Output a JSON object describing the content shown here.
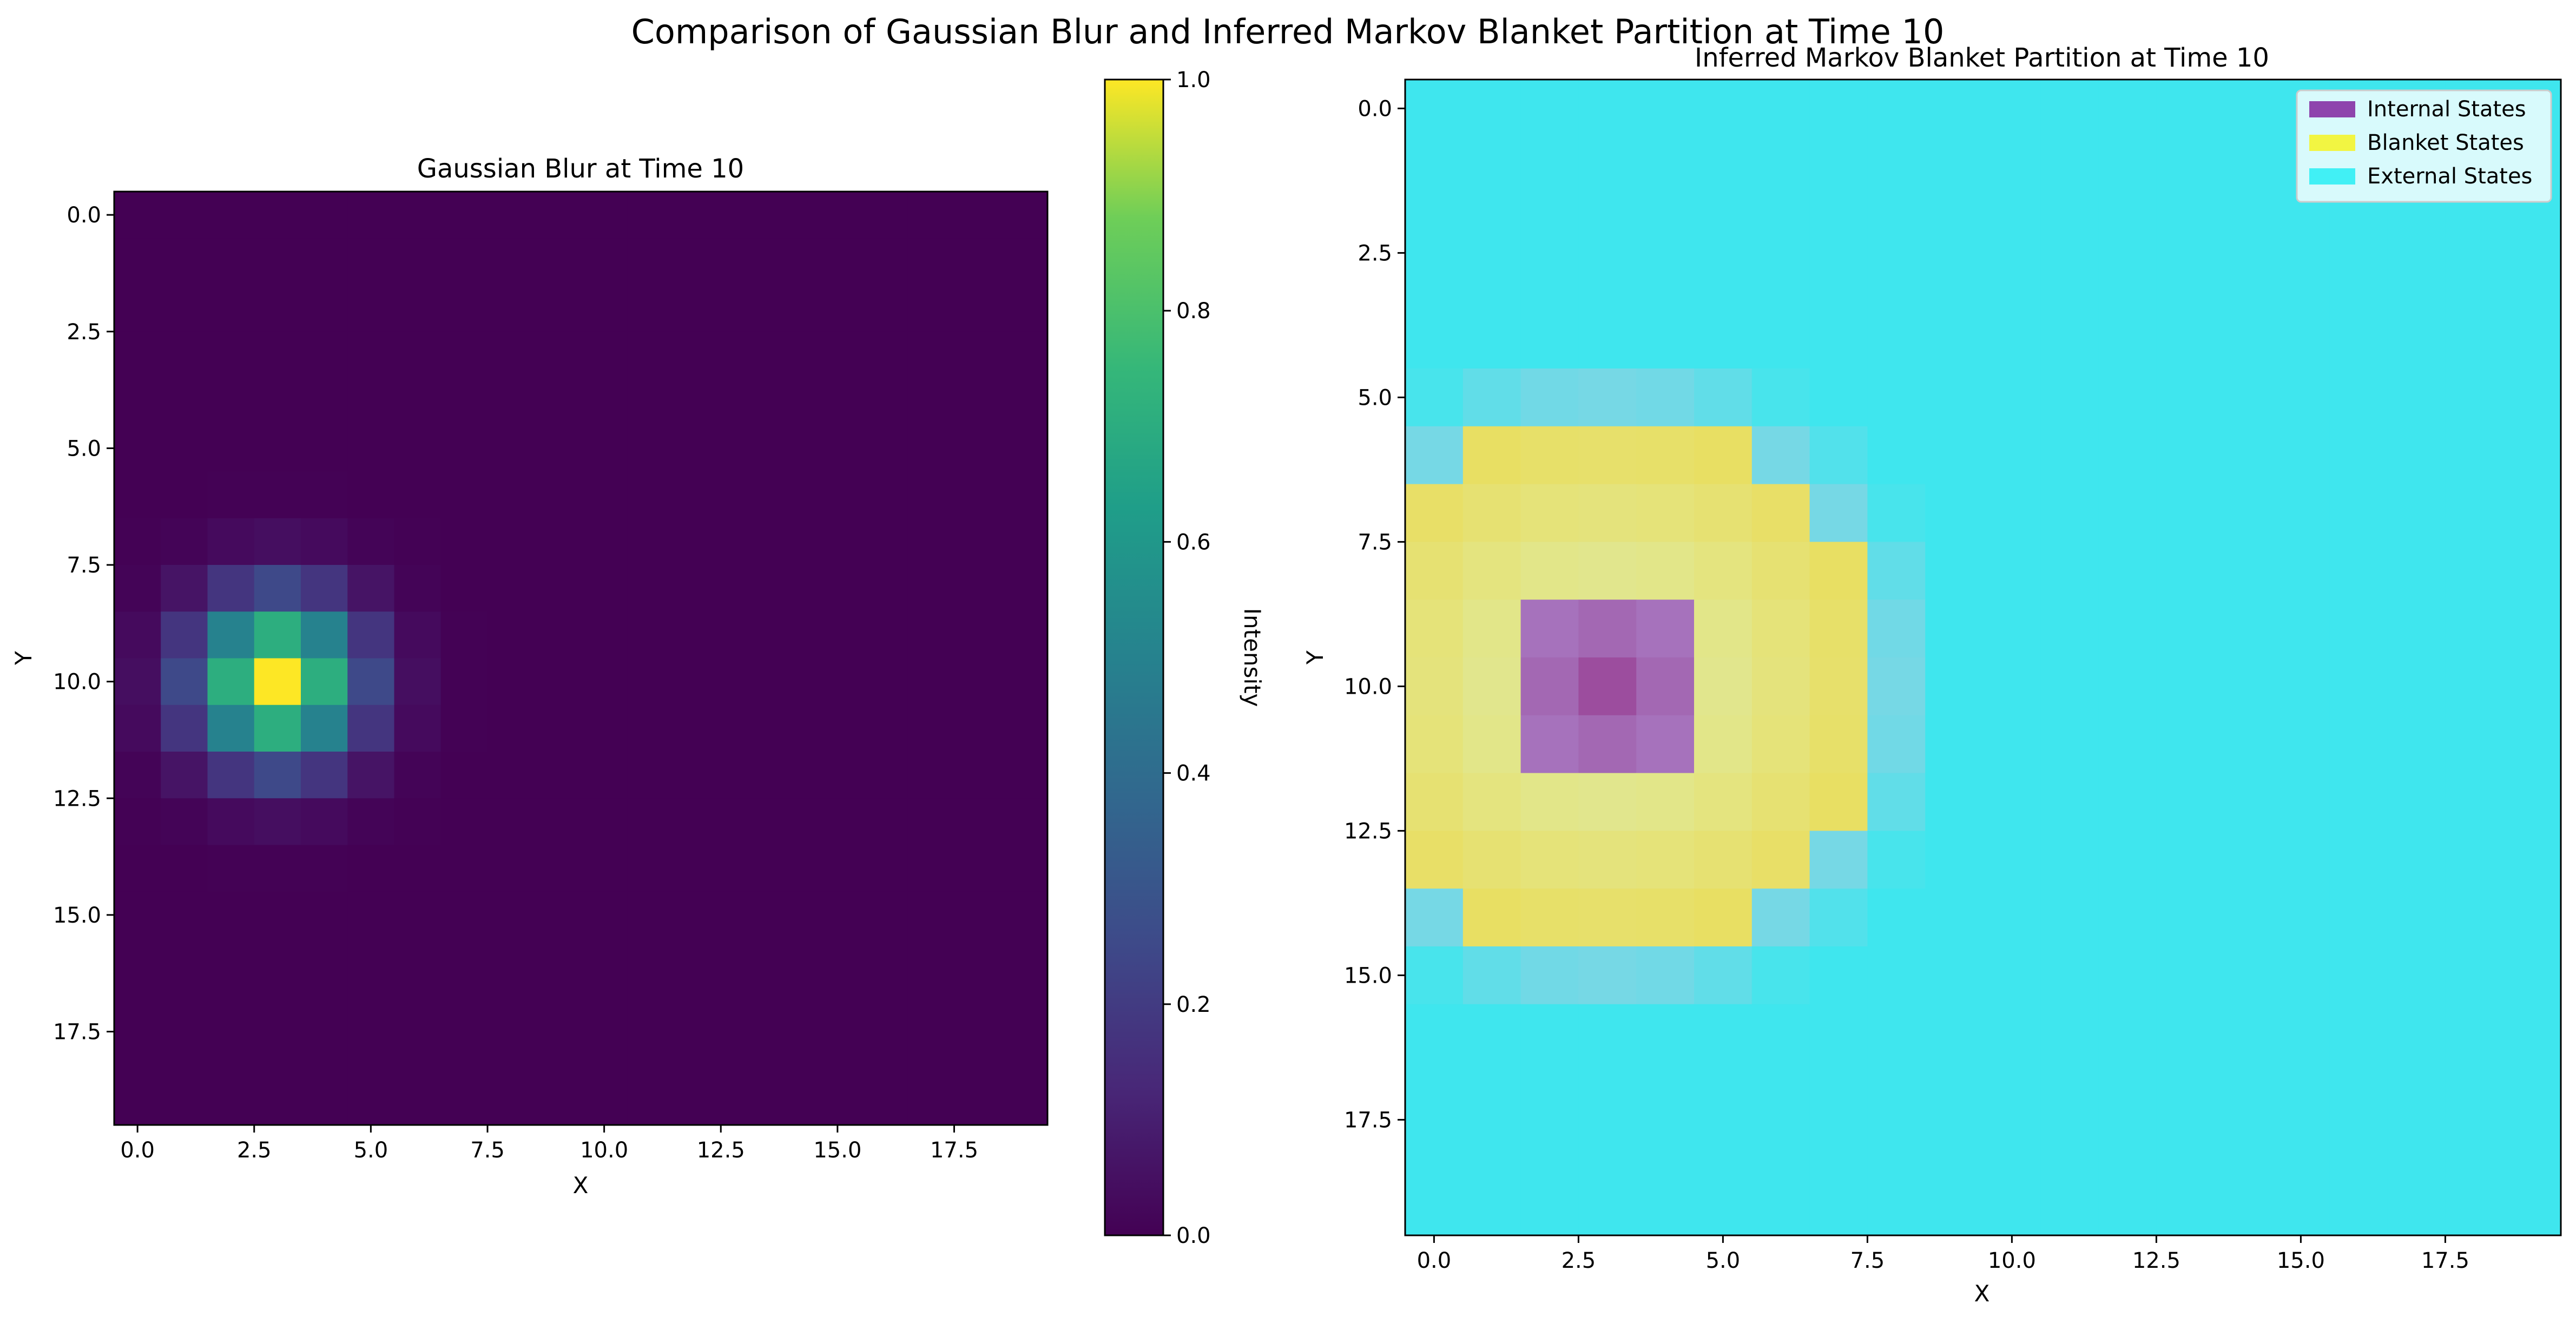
{
  "figure": {
    "suptitle": "Comparison of Gaussian Blur and Inferred Markov Blanket Partition at Time 10"
  },
  "chart_data": [
    {
      "type": "heatmap",
      "title": "Gaussian Blur at Time 10",
      "xlabel": "X",
      "ylabel": "Y",
      "grid_size": [
        20,
        20
      ],
      "xlim": [
        -0.5,
        19.5
      ],
      "ylim": [
        19.5,
        -0.5
      ],
      "x_ticks": [
        "0.0",
        "2.5",
        "5.0",
        "7.5",
        "10.0",
        "12.5",
        "15.0",
        "17.5"
      ],
      "y_ticks": [
        "0.0",
        "2.5",
        "5.0",
        "7.5",
        "10.0",
        "12.5",
        "15.0",
        "17.5"
      ],
      "colormap": "viridis",
      "grid": false,
      "peak": {
        "x": 3,
        "y": 10,
        "value": 1.0
      },
      "sigma": 1.2,
      "colorbar": {
        "label": "Intensity",
        "range": [
          0.0,
          1.0
        ],
        "ticks": [
          "0.0",
          "0.2",
          "0.4",
          "0.6",
          "0.8",
          "1.0"
        ]
      }
    },
    {
      "type": "heatmap",
      "title": "Inferred Markov Blanket Partition at Time 10",
      "xlabel": "X",
      "ylabel": "Y",
      "grid_size": [
        20,
        20
      ],
      "xlim": [
        -0.5,
        19.5
      ],
      "ylim": [
        19.5,
        -0.5
      ],
      "x_ticks": [
        "0.0",
        "2.5",
        "5.0",
        "7.5",
        "10.0",
        "12.5",
        "15.0",
        "17.5"
      ],
      "y_ticks": [
        "0.0",
        "2.5",
        "5.0",
        "7.5",
        "10.0",
        "12.5",
        "15.0",
        "17.5"
      ],
      "grid": false,
      "center": {
        "x": 3,
        "y": 10
      },
      "regions": {
        "internal": {
          "x": [
            2,
            4
          ],
          "y": [
            9,
            11
          ]
        },
        "blanket": {
          "x": [
            0,
            7
          ],
          "y": [
            6,
            14
          ]
        }
      },
      "legend": {
        "placement": "upper right",
        "entries": [
          {
            "label": "Internal States",
            "color": "#8e44ad"
          },
          {
            "label": "Blanket States",
            "color": "#f2f542"
          },
          {
            "label": "External States",
            "color": "#41f0f5"
          }
        ]
      },
      "colors": {
        "external": "#3fe6ee",
        "blanket": "#e6e25c",
        "internal": "#9c4d9e"
      }
    }
  ]
}
